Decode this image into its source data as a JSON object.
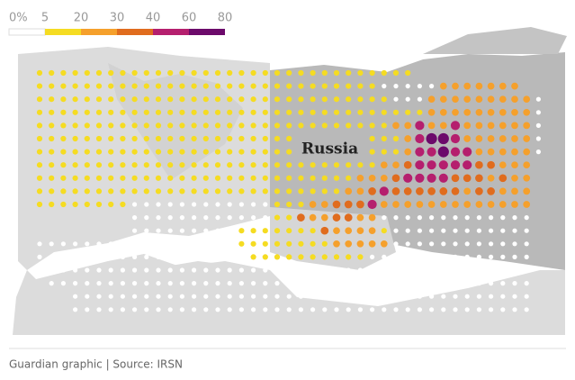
{
  "legend": {
    "ticks": [
      {
        "value": 0,
        "label": "0%"
      },
      5,
      20,
      30,
      40,
      60,
      80
    ],
    "colors": [
      "#ffffff",
      "#f5dc22",
      "#f5a02c",
      "#e06c1e",
      "#b51f6e",
      "#6c0a6b"
    ]
  },
  "country": "Russia",
  "footer": "Guardian graphic | Source: IRSN",
  "grid": [
    [
      10,
      10,
      10,
      10,
      10,
      10,
      10,
      10,
      10,
      10,
      10,
      10,
      10,
      10,
      10,
      10,
      10,
      10,
      10,
      10,
      10,
      10,
      10,
      10,
      10,
      10,
      10,
      10,
      10,
      10,
      10,
      10,
      null,
      null,
      null,
      null,
      null,
      null,
      null,
      null,
      null,
      null,
      null
    ],
    [
      10,
      10,
      10,
      10,
      10,
      10,
      10,
      10,
      10,
      10,
      10,
      10,
      10,
      10,
      10,
      10,
      10,
      10,
      10,
      10,
      10,
      10,
      10,
      10,
      10,
      10,
      10,
      10,
      10,
      0,
      0,
      0,
      0,
      0,
      25,
      25,
      25,
      25,
      25,
      25,
      25,
      null,
      null
    ],
    [
      10,
      10,
      10,
      10,
      10,
      10,
      10,
      10,
      10,
      10,
      10,
      10,
      10,
      10,
      10,
      10,
      10,
      10,
      10,
      10,
      10,
      10,
      10,
      10,
      10,
      10,
      10,
      10,
      10,
      10,
      0,
      0,
      0,
      25,
      25,
      25,
      25,
      25,
      25,
      25,
      25,
      25,
      0
    ],
    [
      10,
      10,
      10,
      10,
      10,
      10,
      10,
      10,
      10,
      10,
      10,
      10,
      10,
      10,
      10,
      10,
      10,
      10,
      10,
      10,
      10,
      10,
      10,
      10,
      10,
      10,
      10,
      10,
      10,
      10,
      10,
      10,
      10,
      25,
      25,
      25,
      25,
      25,
      25,
      25,
      25,
      25,
      0
    ],
    [
      10,
      10,
      10,
      10,
      10,
      10,
      10,
      10,
      10,
      10,
      10,
      10,
      10,
      10,
      10,
      10,
      10,
      10,
      10,
      10,
      10,
      10,
      10,
      10,
      10,
      10,
      10,
      10,
      10,
      10,
      25,
      25,
      50,
      25,
      25,
      50,
      25,
      25,
      25,
      25,
      25,
      25,
      0
    ],
    [
      10,
      10,
      10,
      10,
      10,
      10,
      10,
      10,
      10,
      10,
      10,
      10,
      10,
      10,
      10,
      10,
      10,
      10,
      10,
      10,
      10,
      10,
      null,
      null,
      null,
      null,
      null,
      null,
      10,
      10,
      10,
      25,
      50,
      70,
      70,
      50,
      25,
      25,
      25,
      25,
      25,
      25,
      0
    ],
    [
      10,
      10,
      10,
      10,
      10,
      10,
      10,
      10,
      10,
      10,
      10,
      10,
      10,
      10,
      10,
      10,
      10,
      10,
      10,
      10,
      10,
      10,
      null,
      null,
      null,
      null,
      null,
      null,
      10,
      10,
      10,
      25,
      50,
      50,
      70,
      50,
      50,
      25,
      25,
      25,
      25,
      25,
      0
    ],
    [
      10,
      10,
      10,
      10,
      10,
      10,
      10,
      10,
      10,
      10,
      10,
      10,
      10,
      10,
      10,
      10,
      10,
      10,
      10,
      10,
      10,
      10,
      10,
      10,
      10,
      10,
      10,
      10,
      10,
      25,
      25,
      35,
      50,
      50,
      50,
      50,
      50,
      35,
      35,
      25,
      25,
      25,
      null
    ],
    [
      10,
      10,
      10,
      10,
      10,
      10,
      10,
      10,
      10,
      10,
      10,
      10,
      10,
      10,
      10,
      10,
      10,
      10,
      10,
      10,
      10,
      10,
      10,
      10,
      10,
      10,
      10,
      25,
      25,
      25,
      35,
      50,
      50,
      50,
      50,
      35,
      35,
      35,
      25,
      35,
      25,
      25,
      null
    ],
    [
      10,
      10,
      10,
      10,
      10,
      10,
      10,
      10,
      10,
      10,
      10,
      10,
      10,
      10,
      10,
      10,
      10,
      10,
      10,
      10,
      10,
      10,
      10,
      10,
      10,
      10,
      25,
      25,
      35,
      50,
      35,
      35,
      35,
      35,
      35,
      35,
      25,
      35,
      35,
      25,
      25,
      25,
      null
    ],
    [
      10,
      10,
      10,
      10,
      10,
      10,
      10,
      10,
      0,
      0,
      0,
      0,
      0,
      0,
      0,
      0,
      0,
      0,
      0,
      0,
      10,
      10,
      10,
      25,
      25,
      35,
      35,
      35,
      50,
      25,
      25,
      25,
      25,
      25,
      25,
      25,
      25,
      25,
      25,
      25,
      25,
      25,
      null
    ],
    [
      null,
      null,
      null,
      null,
      null,
      null,
      null,
      null,
      0,
      0,
      0,
      0,
      0,
      0,
      0,
      0,
      0,
      0,
      0,
      0,
      10,
      10,
      35,
      25,
      25,
      35,
      35,
      25,
      25,
      0,
      0,
      0,
      0,
      0,
      0,
      0,
      0,
      0,
      0,
      0,
      0,
      0,
      null
    ],
    [
      null,
      null,
      null,
      null,
      null,
      null,
      null,
      null,
      0,
      0,
      0,
      0,
      0,
      0,
      0,
      0,
      0,
      10,
      10,
      10,
      10,
      10,
      10,
      10,
      35,
      25,
      25,
      25,
      25,
      10,
      0,
      0,
      0,
      0,
      0,
      0,
      0,
      0,
      0,
      0,
      0,
      0,
      null
    ],
    [
      0,
      0,
      0,
      0,
      0,
      0,
      0,
      0,
      0,
      0,
      0,
      0,
      0,
      0,
      0,
      0,
      0,
      10,
      10,
      10,
      10,
      10,
      10,
      10,
      10,
      25,
      25,
      25,
      25,
      25,
      0,
      0,
      0,
      0,
      0,
      0,
      0,
      0,
      0,
      0,
      0,
      0,
      null
    ],
    [
      0,
      0,
      0,
      0,
      0,
      0,
      0,
      0,
      0,
      0,
      0,
      0,
      0,
      0,
      0,
      0,
      0,
      0,
      10,
      10,
      10,
      10,
      10,
      10,
      10,
      10,
      10,
      10,
      0,
      0,
      0,
      0,
      0,
      0,
      0,
      0,
      0,
      0,
      0,
      0,
      0,
      0,
      null
    ],
    [
      0,
      0,
      0,
      0,
      0,
      0,
      0,
      0,
      0,
      0,
      0,
      0,
      0,
      0,
      0,
      0,
      0,
      0,
      0,
      0,
      0,
      0,
      0,
      0,
      0,
      0,
      0,
      0,
      0,
      0,
      0,
      0,
      0,
      0,
      0,
      0,
      0,
      0,
      0,
      0,
      0,
      0,
      null
    ],
    [
      null,
      0,
      0,
      0,
      0,
      0,
      0,
      0,
      0,
      0,
      0,
      0,
      0,
      0,
      0,
      0,
      0,
      0,
      0,
      0,
      0,
      0,
      0,
      0,
      0,
      0,
      0,
      0,
      0,
      0,
      0,
      0,
      0,
      0,
      0,
      0,
      0,
      0,
      0,
      0,
      0,
      0,
      null
    ],
    [
      null,
      null,
      null,
      0,
      0,
      0,
      0,
      0,
      0,
      0,
      0,
      0,
      0,
      0,
      0,
      0,
      0,
      0,
      0,
      0,
      0,
      0,
      0,
      0,
      0,
      0,
      0,
      0,
      0,
      0,
      0,
      0,
      0,
      0,
      0,
      0,
      0,
      0,
      0,
      0,
      0,
      0,
      null
    ],
    [
      null,
      null,
      null,
      0,
      0,
      0,
      0,
      0,
      0,
      0,
      0,
      0,
      0,
      0,
      0,
      0,
      0,
      0,
      0,
      0,
      0,
      0,
      0,
      0,
      0,
      0,
      0,
      0,
      0,
      0,
      0,
      0,
      0,
      0,
      0,
      0,
      0,
      0,
      0,
      0,
      0,
      0,
      null
    ]
  ]
}
